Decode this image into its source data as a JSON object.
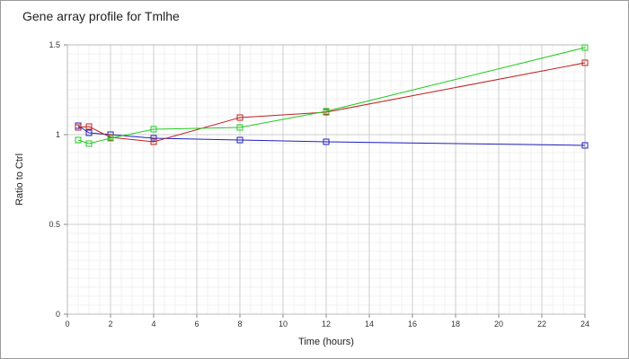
{
  "chart_data": {
    "type": "line",
    "title": "Gene array profile for Tmlhe",
    "xlabel": "Time (hours)",
    "ylabel": "Ratio to Ctrl",
    "xlim": [
      0,
      24
    ],
    "ylim": [
      0,
      1.5
    ],
    "x_ticks": [
      "0",
      "2",
      "4",
      "6",
      "8",
      "10",
      "12",
      "14",
      "16",
      "18",
      "20",
      "22",
      "24"
    ],
    "y_ticks": [
      "0",
      "0.5",
      "1",
      "1.5"
    ],
    "grid": true,
    "series": [
      {
        "color": "#2020c0",
        "marker": "square",
        "points": [
          [
            0.5,
            1.05
          ],
          [
            1,
            1.01
          ],
          [
            2,
            1.0
          ],
          [
            4,
            0.98
          ],
          [
            8,
            0.97
          ],
          [
            12,
            0.96
          ],
          [
            24,
            0.94
          ]
        ]
      },
      {
        "color": "#c02020",
        "marker": "square",
        "points": [
          [
            0.5,
            1.04
          ],
          [
            1,
            1.045
          ],
          [
            2,
            0.985
          ],
          [
            4,
            0.96
          ],
          [
            8,
            1.095
          ],
          [
            12,
            1.125
          ],
          [
            24,
            1.4
          ]
        ]
      },
      {
        "color": "#20cc20",
        "marker": "square",
        "points": [
          [
            0.5,
            0.97
          ],
          [
            1,
            0.95
          ],
          [
            2,
            0.98
          ],
          [
            4,
            1.03
          ],
          [
            8,
            1.04
          ],
          [
            12,
            1.13
          ],
          [
            24,
            1.485
          ]
        ]
      }
    ]
  }
}
